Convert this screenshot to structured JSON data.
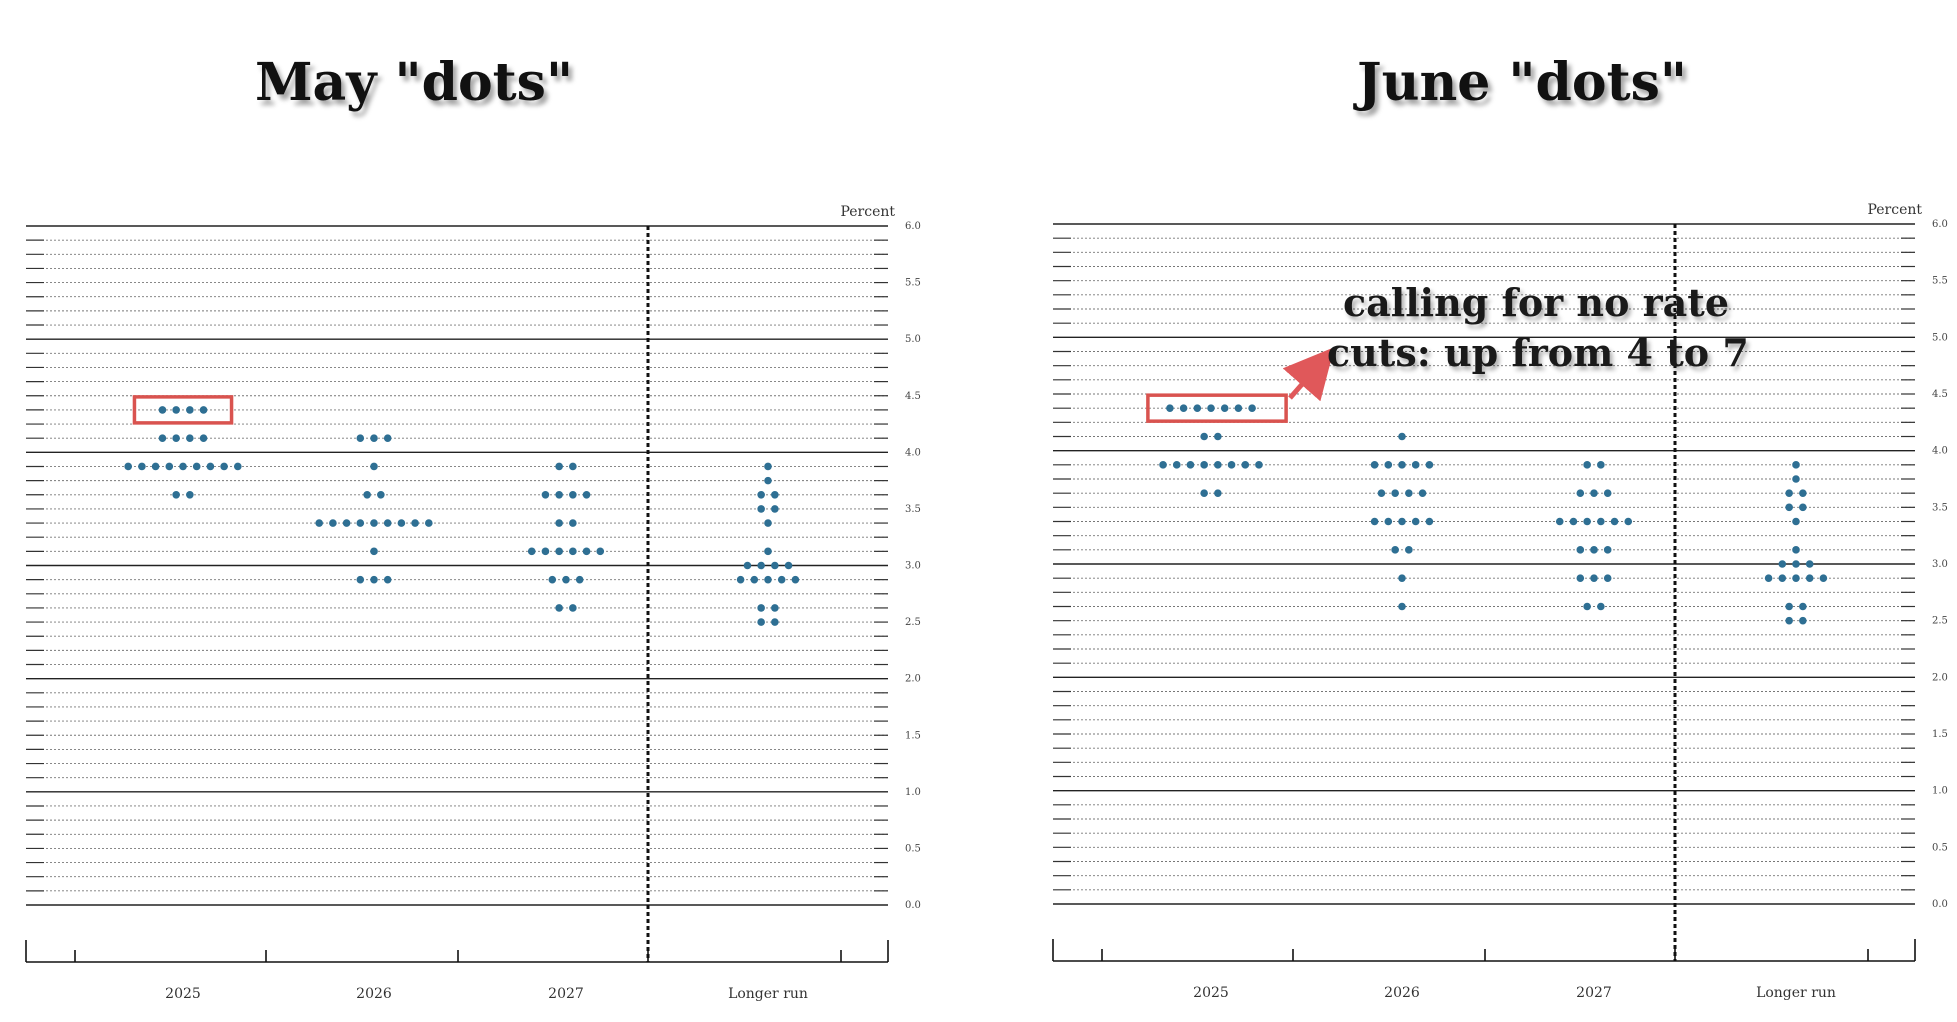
{
  "titles": {
    "left": "May \"dots\"",
    "right": "June \"dots\""
  },
  "annotation": {
    "line1": "calling for no rate",
    "line2": "cuts: up from 4 to 7"
  },
  "colors": {
    "dot": "#2E6F93",
    "highlight": "#D9534F",
    "arrow": "#E0585A"
  },
  "chart_data": [
    {
      "type": "scatter",
      "title": "May \"dots\"",
      "unit_label": "Percent",
      "categories": [
        "2025",
        "2026",
        "2027",
        "Longer run"
      ],
      "ylim": [
        0,
        6
      ],
      "y_ticks": [
        "0.0",
        "0.5",
        "1.0",
        "1.5",
        "2.0",
        "2.5",
        "3.0",
        "3.5",
        "4.0",
        "4.5",
        "5.0",
        "5.5",
        "6.0"
      ],
      "highlight": {
        "category": "2025",
        "value": 4.375,
        "count": 4
      },
      "dots": {
        "2025": [
          {
            "v": 4.375,
            "n": 4
          },
          {
            "v": 4.125,
            "n": 4
          },
          {
            "v": 3.875,
            "n": 9
          },
          {
            "v": 3.625,
            "n": 2
          }
        ],
        "2026": [
          {
            "v": 4.125,
            "n": 3
          },
          {
            "v": 3.875,
            "n": 1
          },
          {
            "v": 3.625,
            "n": 2
          },
          {
            "v": 3.375,
            "n": 9
          },
          {
            "v": 3.125,
            "n": 1
          },
          {
            "v": 2.875,
            "n": 3
          }
        ],
        "2027": [
          {
            "v": 3.875,
            "n": 2
          },
          {
            "v": 3.625,
            "n": 4
          },
          {
            "v": 3.375,
            "n": 2
          },
          {
            "v": 3.125,
            "n": 6
          },
          {
            "v": 2.875,
            "n": 3
          },
          {
            "v": 2.625,
            "n": 2
          }
        ],
        "Longer run": [
          {
            "v": 3.875,
            "n": 1
          },
          {
            "v": 3.75,
            "n": 1
          },
          {
            "v": 3.625,
            "n": 2
          },
          {
            "v": 3.5,
            "n": 2
          },
          {
            "v": 3.375,
            "n": 1
          },
          {
            "v": 3.125,
            "n": 1
          },
          {
            "v": 3.0,
            "n": 4
          },
          {
            "v": 2.875,
            "n": 5
          },
          {
            "v": 2.625,
            "n": 2
          },
          {
            "v": 2.5,
            "n": 2
          }
        ]
      }
    },
    {
      "type": "scatter",
      "title": "June \"dots\"",
      "unit_label": "Percent",
      "categories": [
        "2025",
        "2026",
        "2027",
        "Longer run"
      ],
      "ylim": [
        0,
        6
      ],
      "y_ticks": [
        "0.0",
        "0.5",
        "1.0",
        "1.5",
        "2.0",
        "2.5",
        "3.0",
        "3.5",
        "4.0",
        "4.5",
        "5.0",
        "5.5",
        "6.0"
      ],
      "highlight": {
        "category": "2025",
        "value": 4.375,
        "count": 7
      },
      "dots": {
        "2025": [
          {
            "v": 4.375,
            "n": 7
          },
          {
            "v": 4.125,
            "n": 2
          },
          {
            "v": 3.875,
            "n": 8
          },
          {
            "v": 3.625,
            "n": 2
          }
        ],
        "2026": [
          {
            "v": 4.125,
            "n": 1
          },
          {
            "v": 3.875,
            "n": 5
          },
          {
            "v": 3.625,
            "n": 4
          },
          {
            "v": 3.375,
            "n": 5
          },
          {
            "v": 3.125,
            "n": 2
          },
          {
            "v": 2.875,
            "n": 1
          },
          {
            "v": 2.625,
            "n": 1
          }
        ],
        "2027": [
          {
            "v": 3.875,
            "n": 2
          },
          {
            "v": 3.625,
            "n": 3
          },
          {
            "v": 3.375,
            "n": 6
          },
          {
            "v": 3.125,
            "n": 3
          },
          {
            "v": 2.875,
            "n": 3
          },
          {
            "v": 2.625,
            "n": 2
          }
        ],
        "Longer run": [
          {
            "v": 3.875,
            "n": 1
          },
          {
            "v": 3.75,
            "n": 1
          },
          {
            "v": 3.625,
            "n": 2
          },
          {
            "v": 3.5,
            "n": 2
          },
          {
            "v": 3.375,
            "n": 1
          },
          {
            "v": 3.125,
            "n": 1
          },
          {
            "v": 3.0,
            "n": 3
          },
          {
            "v": 2.875,
            "n": 5
          },
          {
            "v": 2.625,
            "n": 2
          },
          {
            "v": 2.5,
            "n": 2
          }
        ]
      }
    }
  ]
}
